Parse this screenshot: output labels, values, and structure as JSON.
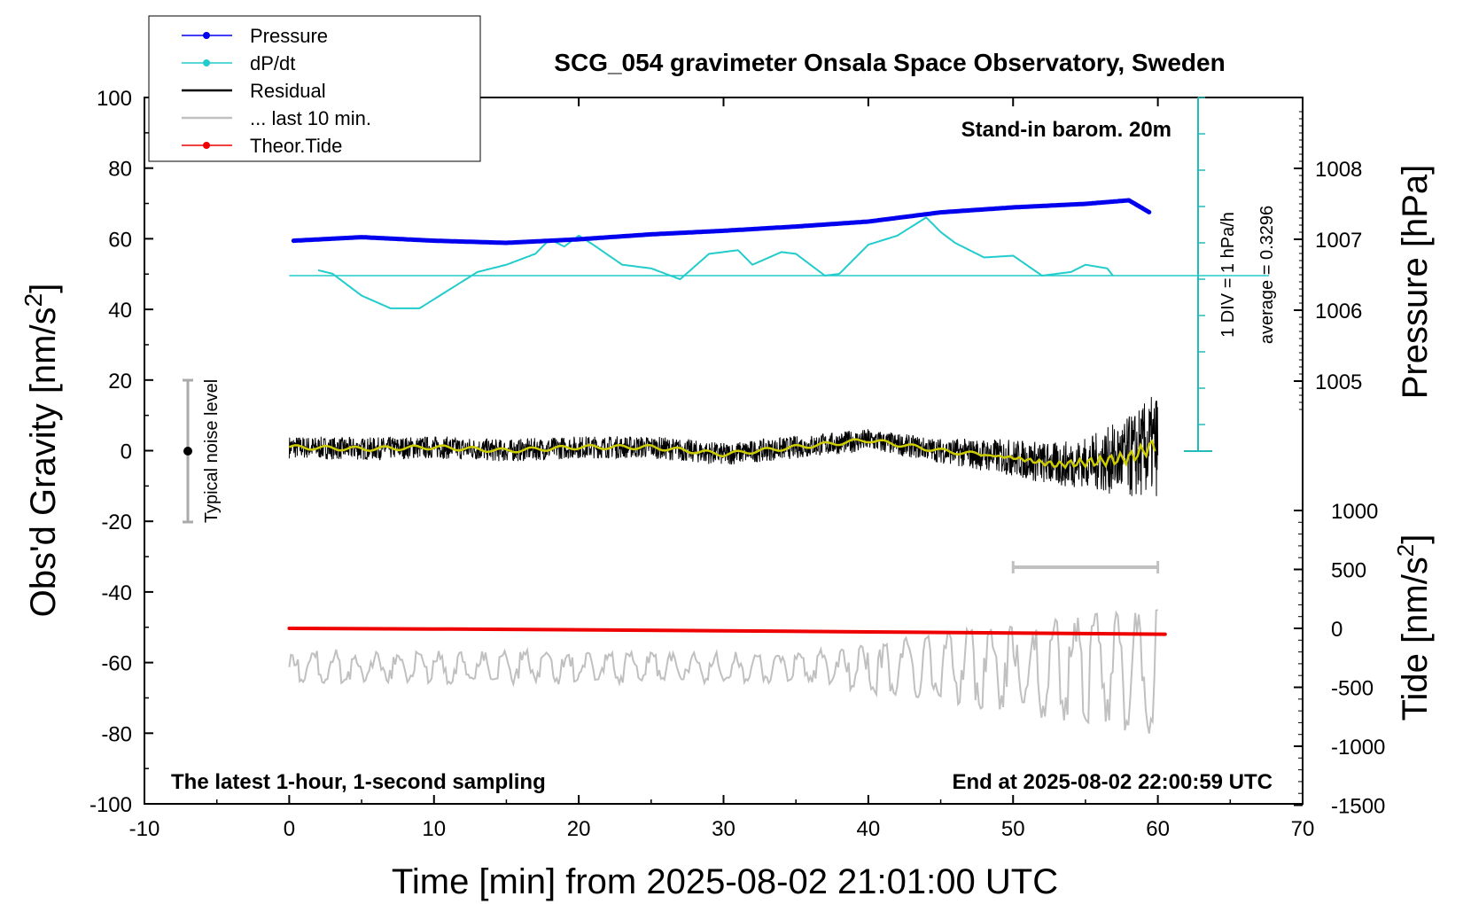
{
  "chart_data": {
    "type": "line",
    "title": "SCG_054 gravimeter Onsala Space Observatory, Sweden",
    "xlabel": "Time [min] from 2025-08-02 21:01:00 UTC",
    "ylabel_base": "Obs'd Gravity [nm/s",
    "ylabel_sup": "2",
    "ylabel_end": "]",
    "y2label": "Pressure [hPa]",
    "y3label_base": "Tide [nm/s",
    "y3label_sup": "2",
    "y3label_end": "]",
    "xlim": [
      -10,
      70
    ],
    "ylim": [
      -100,
      100
    ],
    "xticks": [
      -10,
      0,
      10,
      20,
      30,
      40,
      50,
      60,
      70
    ],
    "yticks": [
      -100,
      -80,
      -60,
      -40,
      -20,
      0,
      20,
      40,
      60,
      80,
      100
    ],
    "pressure_ticks": [
      1005,
      1006,
      1007,
      1008
    ],
    "tide_ticks": [
      -1500,
      -1000,
      -500,
      0,
      500,
      1000
    ],
    "grid": false,
    "legend_position": "top-left",
    "annotations": {
      "barometer": "Stand-in barom. 20m",
      "noise": "Typical noise level",
      "div": "1 DIV = 1 hPa/h",
      "average": "average = 0.3296",
      "sampling": "The latest 1-hour, 1-second sampling",
      "end": "End at 2025-08-02 22:00:59 UTC"
    },
    "series": [
      {
        "name": "Pressure",
        "color": "#0000ee",
        "x": [
          0.3,
          5,
          10,
          15,
          20,
          25,
          30,
          35,
          40,
          45,
          50,
          55,
          58,
          59.5
        ],
        "values": [
          1006.98,
          1007.03,
          1006.98,
          1006.95,
          1007.0,
          1007.07,
          1007.12,
          1007.18,
          1007.25,
          1007.38,
          1007.45,
          1007.5,
          1007.55,
          1007.37
        ]
      },
      {
        "name": "dP/dt",
        "color": "#22cccc",
        "x": [
          2,
          3,
          5,
          7,
          9,
          11,
          13,
          15,
          17,
          18,
          19,
          20,
          21,
          23,
          25,
          27,
          29,
          31,
          32,
          34,
          35,
          37,
          38,
          40,
          42,
          44,
          45,
          46,
          48,
          50,
          52,
          54,
          55,
          56.5,
          57
        ],
        "values": [
          0.15,
          0.05,
          -0.55,
          -0.9,
          -0.9,
          -0.4,
          0.1,
          0.3,
          0.6,
          1.0,
          0.8,
          1.1,
          0.85,
          0.3,
          0.2,
          -0.1,
          0.6,
          0.7,
          0.3,
          0.65,
          0.6,
          0.0,
          0.05,
          0.85,
          1.1,
          1.6,
          1.2,
          0.9,
          0.5,
          0.55,
          0.0,
          0.1,
          0.3,
          0.2,
          -0.05
        ]
      },
      {
        "name": "Residual",
        "color": "#000000",
        "x": [
          0,
          5,
          10,
          15,
          20,
          25,
          30,
          35,
          40,
          45,
          50,
          53,
          56,
          58,
          59,
          60
        ],
        "values": [
          1,
          0.5,
          1,
          0,
          1,
          1,
          -1,
          1,
          3,
          0,
          -2,
          -4,
          -3,
          -2,
          0,
          2
        ]
      },
      {
        "name": "... last 10 min.",
        "color": "#c0c0c0",
        "x": [
          50,
          60
        ],
        "values": [
          -33,
          -33
        ]
      },
      {
        "name": "Theor.Tide",
        "color": "#ee0000",
        "x": [
          0,
          10,
          20,
          30,
          40,
          50,
          60.5
        ],
        "values": [
          0,
          -5,
          -12,
          -20,
          -30,
          -40,
          -50
        ]
      }
    ]
  }
}
